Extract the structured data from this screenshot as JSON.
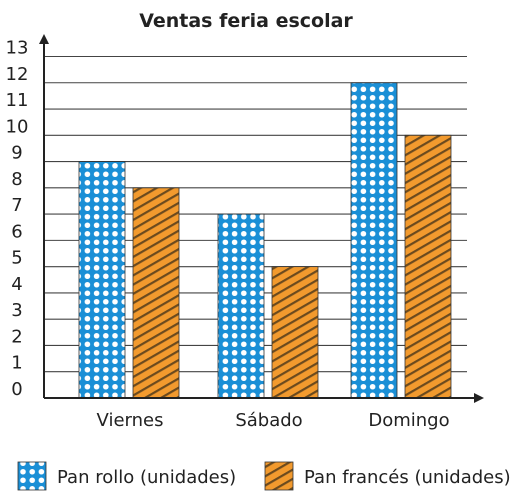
{
  "chart_data": {
    "type": "bar",
    "title": "Ventas feria escolar",
    "xlabel": "",
    "ylabel": "",
    "categories": [
      "Viernes",
      "Sábado",
      "Domingo"
    ],
    "series": [
      {
        "name": "Pan rollo (unidades)",
        "values": [
          9,
          7,
          12
        ],
        "color": "#1a8fd6",
        "pattern": "dots"
      },
      {
        "name": "Pan francés (unidades)",
        "values": [
          8,
          5,
          10
        ],
        "color": "#f29a2e",
        "pattern": "stripes"
      }
    ],
    "ylim": [
      0,
      13
    ],
    "yticks": [
      "0",
      "1",
      "2",
      "3",
      "4",
      "5",
      "6",
      "7",
      "8",
      "9",
      "10",
      "11",
      "12",
      "13"
    ],
    "grid": true,
    "legend": "bottom"
  }
}
